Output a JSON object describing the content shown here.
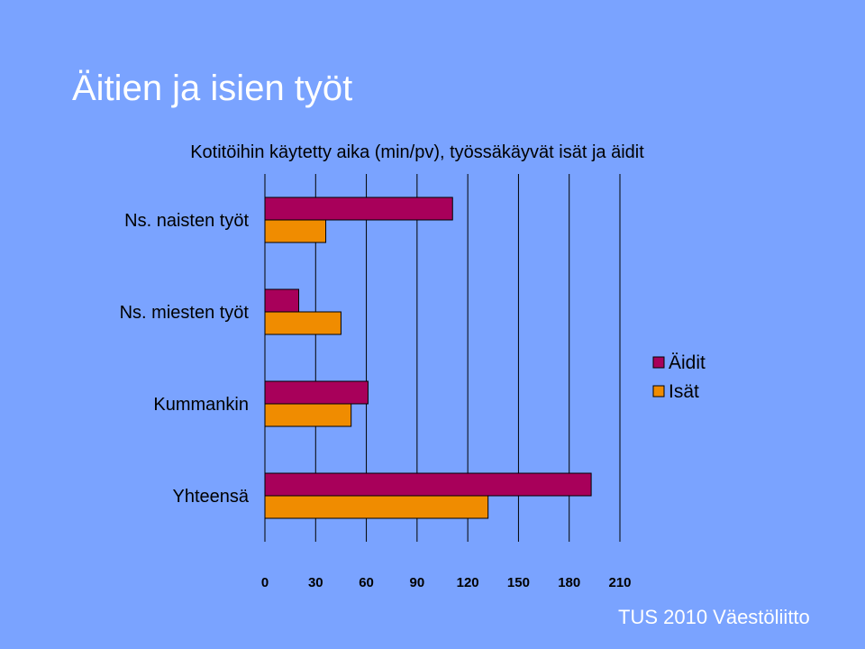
{
  "slide": {
    "title": "Äitien ja isien työt",
    "footer": "TUS 2010 Väestöliitto"
  },
  "colors": {
    "background": "#7aa3ff",
    "mothers": "#a8005a",
    "fathers": "#f08c00",
    "grid": "#000000"
  },
  "chart_data": {
    "type": "bar",
    "orientation": "horizontal",
    "title": "Kotitöihin käytetty aika (min/pv), työssäkäyvät isät ja äidit",
    "categories": [
      "Ns. naisten työt",
      "Ns. miesten työt",
      "Kummankin",
      "Yhteensä"
    ],
    "series": [
      {
        "name": "Äidit",
        "color": "#a8005a",
        "values": [
          111,
          20,
          61,
          193
        ]
      },
      {
        "name": "Isät",
        "color": "#f08c00",
        "values": [
          36,
          45,
          51,
          132
        ]
      }
    ],
    "xticks": [
      "0",
      "30",
      "60",
      "90",
      "120",
      "150",
      "180",
      "210"
    ],
    "xlim": [
      0,
      210
    ],
    "grid": true,
    "legend_position": "right"
  }
}
